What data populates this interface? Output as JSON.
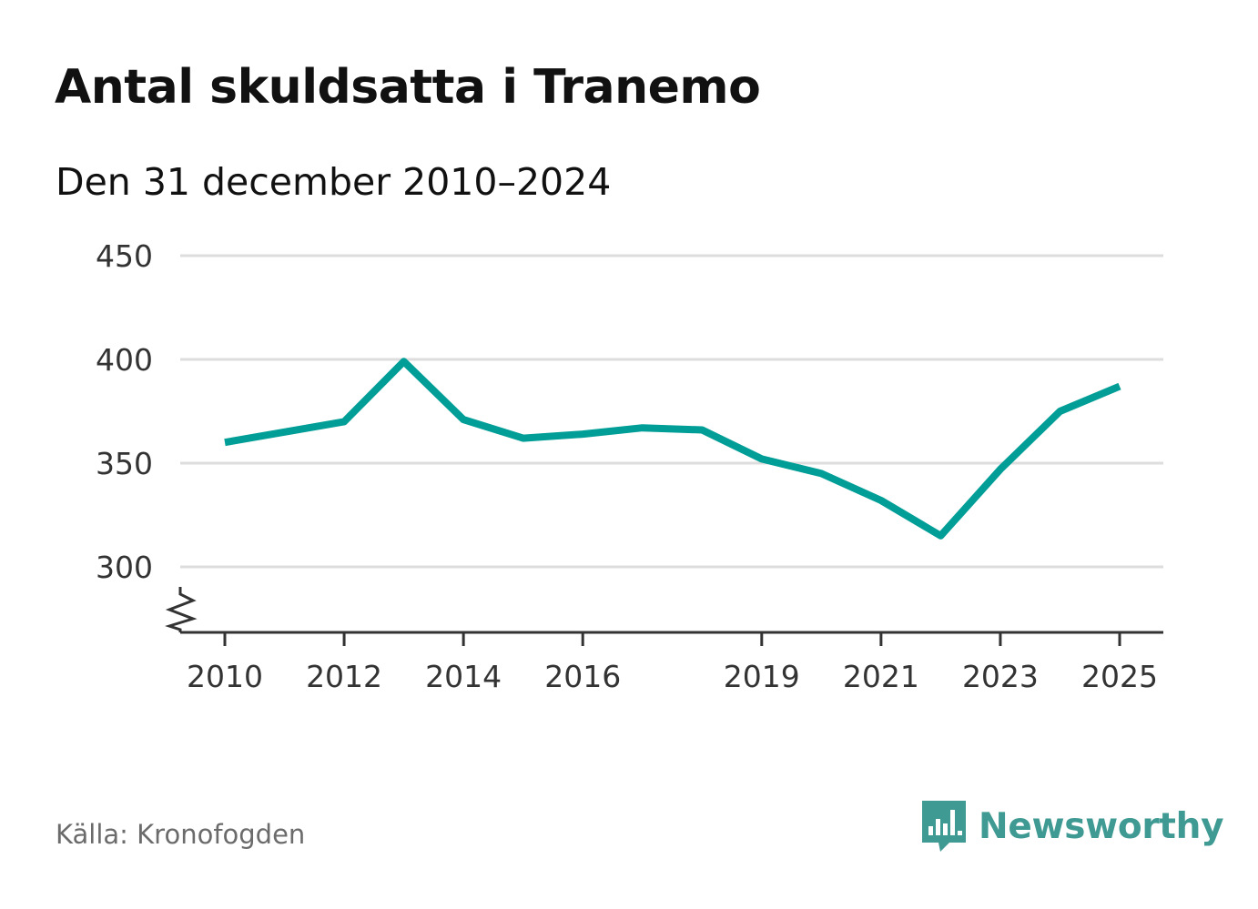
{
  "header": {
    "title": "Antal skuldsatta i Tranemo",
    "subtitle": "Den 31 december 2010–2024"
  },
  "footer": {
    "source": "Källa: Kronofogden",
    "brand": "Newsworthy"
  },
  "colors": {
    "line": "#009e96",
    "grid": "#dddddd",
    "axis": "#333333",
    "brand": "#3f9a93"
  },
  "icons": {
    "brand_logo": "bar-chart-speech-bubble-icon",
    "axis_break": "zigzag-axis-break-icon"
  },
  "chart_data": {
    "type": "line",
    "title": "Antal skuldsatta i Tranemo",
    "subtitle": "Den 31 december 2010–2024",
    "xlabel": "",
    "ylabel": "",
    "x_ticks": [
      2010,
      2012,
      2014,
      2016,
      2019,
      2021,
      2023,
      2025
    ],
    "y_ticks": [
      300,
      350,
      400,
      450
    ],
    "xlim": [
      2009.7,
      2025.8
    ],
    "ylim": [
      270,
      450
    ],
    "grid": true,
    "legend": "none",
    "series": [
      {
        "x": [
          2010,
          2011,
          2012,
          2013,
          2014,
          2015,
          2016,
          2017,
          2018,
          2019,
          2020,
          2021,
          2022,
          2023,
          2024,
          2025
        ],
        "values": [
          360,
          365,
          370,
          399,
          371,
          362,
          364,
          367,
          366,
          352,
          345,
          332,
          315,
          347,
          375,
          387
        ]
      }
    ]
  }
}
